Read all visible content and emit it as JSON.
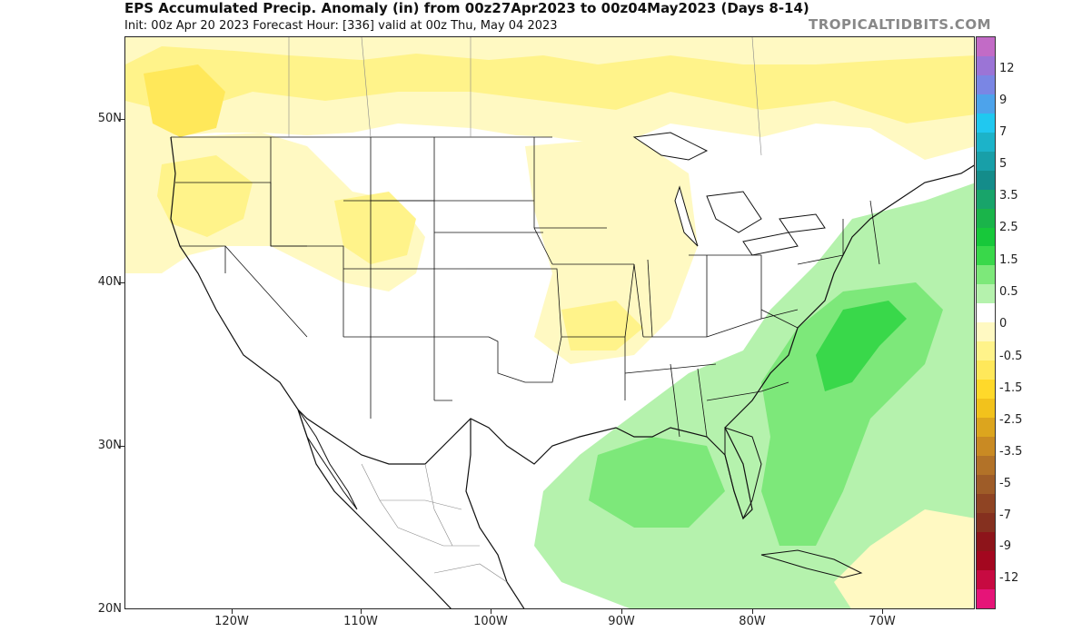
{
  "header": {
    "title": "EPS Accumulated Precip. Anomaly (in) from 00z27Apr2023 to 00z04May2023 (Days 8-14)",
    "subtitle": "Init: 00z Apr 20 2023   Forecast Hour: [336]   valid at 00z Thu, May 04 2023",
    "brand": "TROPICALTIDBITS.COM"
  },
  "axes": {
    "lat_labels": [
      "50N",
      "40N",
      "30N",
      "20N"
    ],
    "lon_labels": [
      "120W",
      "110W",
      "100W",
      "90W",
      "80W",
      "70W"
    ]
  },
  "colorbar": {
    "colors": [
      "#c26bc6",
      "#9b74d6",
      "#7a86e4",
      "#4da3eb",
      "#20c8f0",
      "#1cb3c9",
      "#189fa8",
      "#148c8a",
      "#18a46a",
      "#1ab44a",
      "#17c83a",
      "#39d84a",
      "#7de87a",
      "#b5f2ad",
      "#ffffff",
      "#fff9c2",
      "#fff38a",
      "#ffe85a",
      "#ffd92a",
      "#f2c21c",
      "#dca51e",
      "#c98a23",
      "#b27228",
      "#9e5c28",
      "#8f4423",
      "#85301f",
      "#8d141a",
      "#a3071f",
      "#c70a41",
      "#e61478"
    ],
    "labels": [
      "12",
      "9",
      "7",
      "5",
      "3.5",
      "2.5",
      "1.5",
      "0.5",
      "0",
      "-0.5",
      "-1.5",
      "-2.5",
      "-3.5",
      "-5",
      "-7",
      "-9",
      "-12"
    ]
  },
  "map": {
    "anomaly_colors": {
      "light_yellow": "#fff9c2",
      "yellow": "#fff38a",
      "deep_yellow": "#ffe85a",
      "light_green": "#b5f2ad",
      "green": "#7de87a",
      "deep_green": "#39d84a",
      "deepest_green": "#17c83a"
    }
  }
}
